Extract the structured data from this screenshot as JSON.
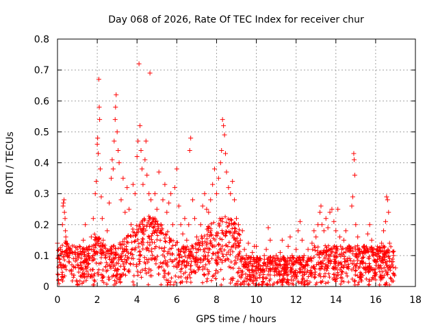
{
  "chart_data": {
    "type": "scatter",
    "title": "Day 068 of 2026, Rate Of TEC Index for receiver chur",
    "xlabel": "GPS time / hours",
    "ylabel": "ROTI / TECUs",
    "xlim": [
      0,
      18
    ],
    "ylim": [
      0,
      0.8
    ],
    "xticks": [
      "0",
      "2",
      "4",
      "6",
      "8",
      "10",
      "12",
      "14",
      "16",
      "18"
    ],
    "yticks": [
      "0",
      "0.1",
      "0.2",
      "0.3",
      "0.4",
      "0.5",
      "0.6",
      "0.7",
      "0.8"
    ],
    "grid": true,
    "marker": "+",
    "color": "#ff0000",
    "points": [
      [
        0.0,
        0.14
      ],
      [
        0.02,
        0.04
      ],
      [
        0.05,
        0.02
      ],
      [
        0.1,
        0.09
      ],
      [
        0.15,
        0.12
      ],
      [
        0.2,
        0.06
      ],
      [
        0.25,
        0.2
      ],
      [
        0.28,
        0.26
      ],
      [
        0.3,
        0.27
      ],
      [
        0.33,
        0.28
      ],
      [
        0.35,
        0.24
      ],
      [
        0.38,
        0.22
      ],
      [
        0.4,
        0.18
      ],
      [
        0.42,
        0.16
      ],
      [
        0.45,
        0.13
      ],
      [
        0.5,
        0.1
      ],
      [
        0.55,
        0.08
      ],
      [
        0.6,
        0.12
      ],
      [
        0.7,
        0.05
      ],
      [
        0.8,
        0.09
      ],
      [
        0.9,
        0.11
      ],
      [
        1.0,
        0.07
      ],
      [
        1.1,
        0.13
      ],
      [
        1.2,
        0.06
      ],
      [
        1.3,
        0.15
      ],
      [
        1.4,
        0.2
      ],
      [
        1.5,
        0.12
      ],
      [
        1.6,
        0.09
      ],
      [
        1.7,
        0.16
      ],
      [
        1.8,
        0.22
      ],
      [
        1.9,
        0.3
      ],
      [
        1.95,
        0.34
      ],
      [
        2.0,
        0.46
      ],
      [
        2.02,
        0.48
      ],
      [
        2.05,
        0.43
      ],
      [
        2.08,
        0.67
      ],
      [
        2.1,
        0.58
      ],
      [
        2.12,
        0.54
      ],
      [
        2.15,
        0.38
      ],
      [
        2.2,
        0.29
      ],
      [
        2.25,
        0.22
      ],
      [
        2.3,
        0.15
      ],
      [
        2.4,
        0.1
      ],
      [
        2.5,
        0.18
      ],
      [
        2.6,
        0.27
      ],
      [
        2.7,
        0.35
      ],
      [
        2.75,
        0.41
      ],
      [
        2.8,
        0.38
      ],
      [
        2.85,
        0.47
      ],
      [
        2.9,
        0.54
      ],
      [
        2.92,
        0.58
      ],
      [
        2.95,
        0.62
      ],
      [
        3.0,
        0.5
      ],
      [
        3.05,
        0.44
      ],
      [
        3.1,
        0.4
      ],
      [
        3.2,
        0.28
      ],
      [
        3.3,
        0.35
      ],
      [
        3.4,
        0.24
      ],
      [
        3.5,
        0.32
      ],
      [
        3.6,
        0.25
      ],
      [
        3.7,
        0.2
      ],
      [
        3.8,
        0.33
      ],
      [
        3.9,
        0.3
      ],
      [
        4.0,
        0.42
      ],
      [
        4.05,
        0.47
      ],
      [
        4.1,
        0.72
      ],
      [
        4.15,
        0.52
      ],
      [
        4.2,
        0.44
      ],
      [
        4.25,
        0.38
      ],
      [
        4.3,
        0.33
      ],
      [
        4.4,
        0.41
      ],
      [
        4.45,
        0.47
      ],
      [
        4.5,
        0.36
      ],
      [
        4.6,
        0.3
      ],
      [
        4.65,
        0.69
      ],
      [
        4.7,
        0.28
      ],
      [
        4.8,
        0.22
      ],
      [
        4.9,
        0.3
      ],
      [
        5.0,
        0.25
      ],
      [
        5.1,
        0.37
      ],
      [
        5.2,
        0.2
      ],
      [
        5.3,
        0.28
      ],
      [
        5.4,
        0.33
      ],
      [
        5.5,
        0.24
      ],
      [
        5.6,
        0.27
      ],
      [
        5.7,
        0.3
      ],
      [
        5.8,
        0.2
      ],
      [
        5.9,
        0.32
      ],
      [
        6.0,
        0.38
      ],
      [
        6.1,
        0.26
      ],
      [
        6.2,
        0.2
      ],
      [
        6.3,
        0.17
      ],
      [
        6.4,
        0.22
      ],
      [
        6.5,
        0.15
      ],
      [
        6.6,
        0.2
      ],
      [
        6.65,
        0.44
      ],
      [
        6.7,
        0.48
      ],
      [
        6.8,
        0.28
      ],
      [
        6.9,
        0.22
      ],
      [
        7.0,
        0.16
      ],
      [
        7.1,
        0.12
      ],
      [
        7.2,
        0.2
      ],
      [
        7.3,
        0.26
      ],
      [
        7.4,
        0.3
      ],
      [
        7.5,
        0.25
      ],
      [
        7.6,
        0.24
      ],
      [
        7.7,
        0.28
      ],
      [
        7.8,
        0.33
      ],
      [
        7.9,
        0.38
      ],
      [
        8.0,
        0.3
      ],
      [
        8.1,
        0.35
      ],
      [
        8.2,
        0.4
      ],
      [
        8.25,
        0.44
      ],
      [
        8.3,
        0.54
      ],
      [
        8.35,
        0.52
      ],
      [
        8.4,
        0.49
      ],
      [
        8.45,
        0.43
      ],
      [
        8.5,
        0.37
      ],
      [
        8.6,
        0.32
      ],
      [
        8.7,
        0.3
      ],
      [
        8.8,
        0.34
      ],
      [
        8.9,
        0.28
      ],
      [
        9.0,
        0.22
      ],
      [
        9.1,
        0.2
      ],
      [
        9.2,
        0.15
      ],
      [
        9.3,
        0.18
      ],
      [
        9.4,
        0.12
      ],
      [
        9.5,
        0.1
      ],
      [
        9.6,
        0.14
      ],
      [
        9.7,
        0.08
      ],
      [
        9.8,
        0.11
      ],
      [
        9.9,
        0.13
      ],
      [
        10.0,
        0.13
      ],
      [
        10.1,
        0.06
      ],
      [
        10.2,
        0.09
      ],
      [
        10.3,
        0.05
      ],
      [
        10.4,
        0.1
      ],
      [
        10.5,
        0.12
      ],
      [
        10.6,
        0.19
      ],
      [
        10.7,
        0.15
      ],
      [
        10.8,
        0.08
      ],
      [
        10.9,
        0.06
      ],
      [
        11.0,
        0.1
      ],
      [
        11.1,
        0.07
      ],
      [
        11.2,
        0.11
      ],
      [
        11.3,
        0.15
      ],
      [
        11.4,
        0.09
      ],
      [
        11.5,
        0.06
      ],
      [
        11.6,
        0.13
      ],
      [
        11.7,
        0.16
      ],
      [
        11.8,
        0.1
      ],
      [
        11.9,
        0.08
      ],
      [
        12.0,
        0.12
      ],
      [
        12.1,
        0.18
      ],
      [
        12.2,
        0.21
      ],
      [
        12.3,
        0.15
      ],
      [
        12.4,
        0.1
      ],
      [
        12.5,
        0.07
      ],
      [
        12.6,
        0.12
      ],
      [
        12.7,
        0.09
      ],
      [
        12.8,
        0.14
      ],
      [
        12.9,
        0.18
      ],
      [
        13.0,
        0.16
      ],
      [
        13.1,
        0.2
      ],
      [
        13.2,
        0.24
      ],
      [
        13.25,
        0.26
      ],
      [
        13.3,
        0.2
      ],
      [
        13.4,
        0.18
      ],
      [
        13.5,
        0.22
      ],
      [
        13.6,
        0.19
      ],
      [
        13.7,
        0.24
      ],
      [
        13.8,
        0.25
      ],
      [
        13.9,
        0.21
      ],
      [
        14.0,
        0.18
      ],
      [
        14.1,
        0.25
      ],
      [
        14.2,
        0.16
      ],
      [
        14.3,
        0.12
      ],
      [
        14.4,
        0.15
      ],
      [
        14.5,
        0.18
      ],
      [
        14.6,
        0.12
      ],
      [
        14.7,
        0.09
      ],
      [
        14.8,
        0.26
      ],
      [
        14.85,
        0.29
      ],
      [
        14.9,
        0.43
      ],
      [
        14.92,
        0.41
      ],
      [
        14.95,
        0.36
      ],
      [
        15.0,
        0.2
      ],
      [
        15.1,
        0.16
      ],
      [
        15.2,
        0.12
      ],
      [
        15.3,
        0.08
      ],
      [
        15.4,
        0.13
      ],
      [
        15.5,
        0.11
      ],
      [
        15.6,
        0.17
      ],
      [
        15.7,
        0.2
      ],
      [
        15.8,
        0.15
      ],
      [
        15.9,
        0.1
      ],
      [
        16.0,
        0.08
      ],
      [
        16.1,
        0.12
      ],
      [
        16.2,
        0.09
      ],
      [
        16.3,
        0.14
      ],
      [
        16.4,
        0.18
      ],
      [
        16.5,
        0.21
      ],
      [
        16.55,
        0.29
      ],
      [
        16.6,
        0.28
      ],
      [
        16.65,
        0.24
      ],
      [
        16.7,
        0.14
      ],
      [
        16.8,
        0.08
      ],
      [
        16.9,
        0.1
      ],
      [
        17.0,
        0.06
      ]
    ]
  }
}
